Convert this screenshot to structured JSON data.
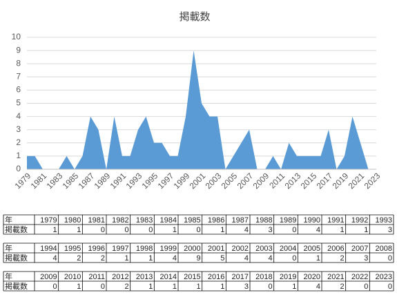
{
  "chart_data": {
    "type": "area",
    "title": "掲載数",
    "categories": [
      "1979",
      "1980",
      "1981",
      "1982",
      "1983",
      "1984",
      "1985",
      "1986",
      "1987",
      "1988",
      "1989",
      "1990",
      "1991",
      "1992",
      "1993",
      "1994",
      "1995",
      "1996",
      "1997",
      "1998",
      "1999",
      "2000",
      "2001",
      "2002",
      "2003",
      "2004",
      "2005",
      "2006",
      "2007",
      "2008",
      "2009",
      "2010",
      "2011",
      "2012",
      "2013",
      "2014",
      "2015",
      "2016",
      "2017",
      "2018",
      "2019",
      "2020",
      "2021",
      "2022",
      "2023"
    ],
    "values": [
      1,
      1,
      0,
      0,
      0,
      1,
      0,
      1,
      4,
      3,
      0,
      4,
      1,
      1,
      3,
      4,
      2,
      2,
      1,
      1,
      4,
      9,
      5,
      4,
      4,
      0,
      1,
      2,
      3,
      0,
      0,
      1,
      0,
      2,
      1,
      1,
      1,
      1,
      3,
      0,
      1,
      4,
      2,
      0,
      0
    ],
    "color": "#5b9bd5",
    "ylim": [
      0,
      10
    ],
    "yticks": [
      0,
      1,
      2,
      3,
      4,
      5,
      6,
      7,
      8,
      9,
      10
    ],
    "grid": true
  },
  "table": {
    "row_labels": [
      "年",
      "掲載数"
    ]
  }
}
